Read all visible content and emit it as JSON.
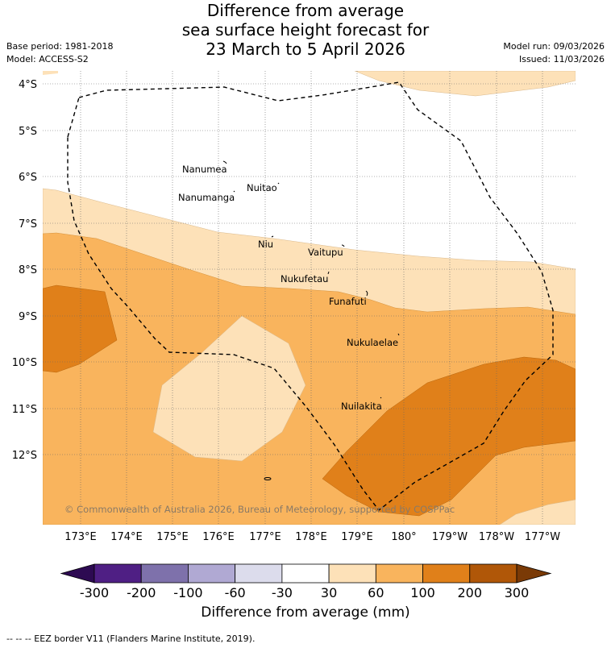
{
  "title": {
    "line1": "Difference from average",
    "line2": "sea surface height forecast for",
    "line3": "23 March to 5 April 2026"
  },
  "meta": {
    "base_period": "Base period: 1981-2018",
    "model": "Model: ACCESS-S2",
    "model_run": "Model run: 09/03/2026",
    "issued": "Issued: 11/03/2026"
  },
  "lat_labels": [
    "4°S",
    "5°S",
    "6°S",
    "7°S",
    "8°S",
    "9°S",
    "10°S",
    "11°S",
    "12°S"
  ],
  "lon_labels": [
    "173°E",
    "174°E",
    "175°E",
    "176°E",
    "177°E",
    "178°E",
    "179°E",
    "180°",
    "179°W",
    "178°W",
    "177°W"
  ],
  "islands": [
    "Nanumea",
    "Nuitao",
    "Nanumanga",
    "Niu",
    "Vaitupu",
    "Nukufetau",
    "Funafuti",
    "Nukulaelae",
    "Nuilakita"
  ],
  "copyright": "© Commonwealth of Australia 2026, Bureau of Meteorology, supported by COSPPac",
  "colorbar": {
    "ticks": [
      "-300",
      "-200",
      "-100",
      "-60",
      "-30",
      "30",
      "60",
      "100",
      "200",
      "300"
    ],
    "colors": [
      "#2d0a52",
      "#4f1f84",
      "#7e71ab",
      "#b0a9d3",
      "#dcdcec",
      "#ffffff",
      "#fde1b8",
      "#f9b45d",
      "#e0801a",
      "#b05708",
      "#7a3a06"
    ],
    "title": "Difference from average (mm)"
  },
  "footer": "--  --  -- EEZ border V11 (Flanders Marine Institute, 2019)."
}
